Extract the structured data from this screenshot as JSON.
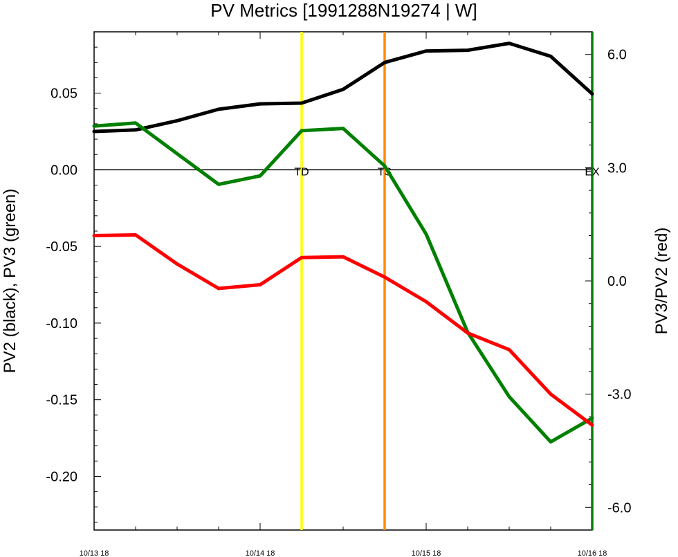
{
  "chart_data": {
    "type": "line",
    "title": "PV Metrics [1991288N19274 | W]",
    "ylabel_left": "PV2 (black), PV3 (green)",
    "ylabel_right": "PV3/PV2 (red)",
    "x": [
      "10/13 18",
      "10/14 00",
      "10/14 06",
      "10/14 12",
      "10/14 18",
      "10/15 00",
      "10/15 06",
      "10/15 12",
      "10/15 18",
      "10/16 00",
      "10/16 06",
      "10/16 12",
      "10/16 18"
    ],
    "x_tick_labels": [
      "10/13 18",
      "10/14 18",
      "10/15 18",
      "10/16 18"
    ],
    "ylim_left": [
      -0.235,
      0.09
    ],
    "ylim_right": [
      -6.6,
      6.6
    ],
    "yticks_left": [
      "0.05",
      "0.00",
      "-0.05",
      "-0.10",
      "-0.15",
      "-0.20"
    ],
    "yticks_right": [
      "6.0",
      "3.0",
      "0.0",
      "-3.0",
      "-6.0"
    ],
    "series": [
      {
        "axis": "left",
        "color": "#000000",
        "values": [
          0.025,
          0.026,
          0.032,
          0.0395,
          0.043,
          0.0435,
          0.0525,
          0.07,
          0.0775,
          0.078,
          0.0825,
          0.074,
          0.0495
        ]
      },
      {
        "axis": "left",
        "color": "#008000",
        "values": [
          0.0285,
          0.0305,
          0.0105,
          -0.0095,
          -0.004,
          0.0255,
          0.027,
          0.0025,
          -0.042,
          -0.106,
          -0.148,
          -0.1775,
          -0.162
        ]
      },
      {
        "axis": "right",
        "color": "#ff0000",
        "values": [
          1.2,
          1.22,
          0.45,
          -0.2,
          -0.1,
          0.62,
          0.64,
          0.1,
          -0.55,
          -1.38,
          -1.82,
          -3.0,
          -3.82
        ]
      }
    ],
    "vertical_markers": [
      {
        "label": "TD",
        "color": "#ffff00",
        "x_index": 5
      },
      {
        "label": "TS",
        "color": "#ff8c00",
        "x_index": 7
      },
      {
        "label": "EX",
        "color": "#008000",
        "x_index": 12
      }
    ],
    "zero_line": true,
    "grid": false
  }
}
